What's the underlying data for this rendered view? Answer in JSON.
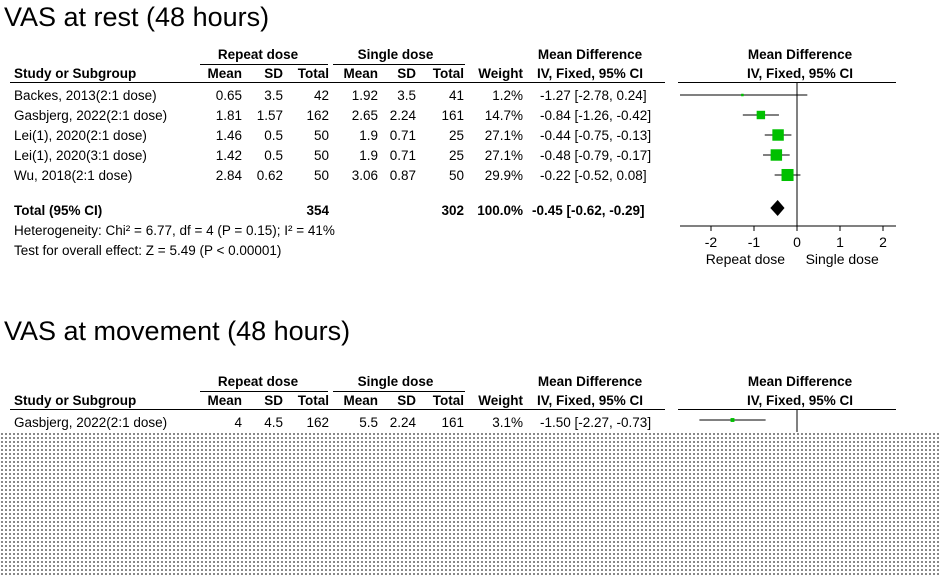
{
  "chart_data": [
    {
      "type": "forest",
      "title": "VAS at rest (48 hours)",
      "headers": {
        "group1": "Repeat dose",
        "group2": "Single dose",
        "effect": "Mean Difference",
        "plot_effect": "Mean Difference",
        "study": "Study or Subgroup",
        "mean": "Mean",
        "sd": "SD",
        "total": "Total",
        "weight": "Weight",
        "method": "IV, Fixed, 95% CI",
        "plot_method": "IV, Fixed, 95% CI"
      },
      "studies": [
        {
          "name": "Backes, 2013(2:1 dose)",
          "m1": "0.65",
          "sd1": "3.5",
          "n1": "42",
          "m2": "1.92",
          "sd2": "3.5",
          "n2": "41",
          "weight": "1.2%",
          "ci_text": "-1.27 [-2.78, 0.24]",
          "md": -1.27,
          "lo": -2.78,
          "hi": 0.24,
          "w": 1.2
        },
        {
          "name": "Gasbjerg, 2022(2:1 dose)",
          "m1": "1.81",
          "sd1": "1.57",
          "n1": "162",
          "m2": "2.65",
          "sd2": "2.24",
          "n2": "161",
          "weight": "14.7%",
          "ci_text": "-0.84 [-1.26, -0.42]",
          "md": -0.84,
          "lo": -1.26,
          "hi": -0.42,
          "w": 14.7
        },
        {
          "name": "Lei(1), 2020(2:1 dose)",
          "m1": "1.46",
          "sd1": "0.5",
          "n1": "50",
          "m2": "1.9",
          "sd2": "0.71",
          "n2": "25",
          "weight": "27.1%",
          "ci_text": "-0.44 [-0.75, -0.13]",
          "md": -0.44,
          "lo": -0.75,
          "hi": -0.13,
          "w": 27.1
        },
        {
          "name": "Lei(1), 2020(3:1 dose)",
          "m1": "1.42",
          "sd1": "0.5",
          "n1": "50",
          "m2": "1.9",
          "sd2": "0.71",
          "n2": "25",
          "weight": "27.1%",
          "ci_text": "-0.48 [-0.79, -0.17]",
          "md": -0.48,
          "lo": -0.79,
          "hi": -0.17,
          "w": 27.1
        },
        {
          "name": "Wu, 2018(2:1 dose)",
          "m1": "2.84",
          "sd1": "0.62",
          "n1": "50",
          "m2": "3.06",
          "sd2": "0.87",
          "n2": "50",
          "weight": "29.9%",
          "ci_text": "-0.22 [-0.52, 0.08]",
          "md": -0.22,
          "lo": -0.52,
          "hi": 0.08,
          "w": 29.9
        }
      ],
      "total": {
        "label": "Total (95% CI)",
        "n1": "354",
        "n2": "302",
        "weight": "100.0%",
        "ci_text": "-0.45 [-0.62, -0.29]",
        "md": -0.45,
        "lo": -0.62,
        "hi": -0.29
      },
      "heterogeneity": "Heterogeneity: Chi² = 6.77, df = 4 (P = 0.15); I² = 41%",
      "overall_effect": "Test for overall effect: Z = 5.49 (P < 0.00001)",
      "axis": {
        "xlim": [
          -2,
          2
        ],
        "ticks": [
          "-2",
          "-1",
          "0",
          "1",
          "2"
        ],
        "tick_values": [
          -2,
          -1,
          0,
          1,
          2
        ],
        "left_label": "Repeat dose",
        "right_label": "Single dose"
      }
    },
    {
      "type": "forest",
      "title": "VAS at movement (48 hours)",
      "headers": {
        "group1": "Repeat dose",
        "group2": "Single dose",
        "effect": "Mean Difference",
        "plot_effect": "Mean Difference",
        "study": "Study or Subgroup",
        "mean": "Mean",
        "sd": "SD",
        "total": "Total",
        "weight": "Weight",
        "method": "IV, Fixed, 95% CI",
        "plot_method": "IV, Fixed, 95% CI"
      },
      "studies": [
        {
          "name": "Gasbjerg, 2022(2:1 dose)",
          "m1": "4",
          "sd1": "4.5",
          "n1": "162",
          "m2": "5.5",
          "sd2": "2.24",
          "n2": "161",
          "weight": "3.1%",
          "ci_text": "-1.50 [-2.27, -0.73]",
          "md": -1.5,
          "lo": -2.27,
          "hi": -0.73,
          "w": 3.1
        }
      ],
      "axis": {
        "xlim": [
          -2,
          2
        ]
      }
    }
  ],
  "colors": {
    "marker": "#00c000",
    "text": "#000000"
  }
}
